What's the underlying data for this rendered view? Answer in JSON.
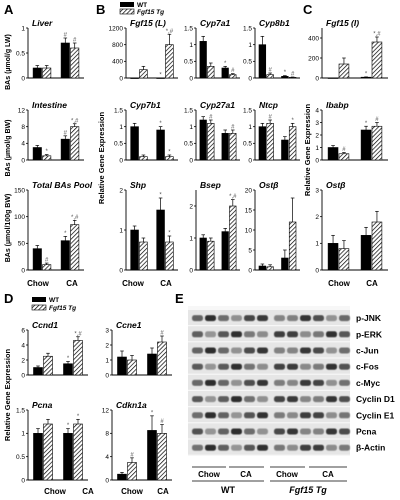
{
  "figure": {
    "panel_letters": [
      "A",
      "B",
      "C",
      "D",
      "E"
    ],
    "legend": {
      "wt": "WT",
      "tg": "Fgf15 Tg"
    },
    "ylabels": {
      "liver": "BAs (µmol/g LW)",
      "intestine": "BAs (µmol/g BW)",
      "pool": "BAs (µmol/100g BW)",
      "rge": "Relative Gene Expression"
    },
    "groups": [
      "Chow",
      "CA"
    ]
  },
  "chart_data": [
    {
      "panel": "A",
      "type": "bar",
      "title": "Liver",
      "categories": [
        "Chow",
        "CA"
      ],
      "ylim": [
        0,
        1
      ],
      "yticks": [
        "0",
        "0.5",
        "1"
      ],
      "series": [
        {
          "name": "WT",
          "values": [
            0.2,
            0.7
          ],
          "err": [
            0.05,
            0.1
          ]
        },
        {
          "name": "Fgf15 Tg",
          "values": [
            0.2,
            0.6
          ],
          "err": [
            0.05,
            0.1
          ]
        }
      ],
      "marks": [
        [
          "",
          ""
        ],
        [
          "#",
          "#"
        ]
      ]
    },
    {
      "panel": "A",
      "type": "bar",
      "title": "Intestine",
      "categories": [
        "Chow",
        "CA"
      ],
      "ylim": [
        0,
        12
      ],
      "yticks": [
        "0",
        "4",
        "8",
        "12"
      ],
      "series": [
        {
          "name": "WT",
          "values": [
            3.0,
            5.0
          ],
          "err": [
            0.5,
            0.8
          ]
        },
        {
          "name": "Fgf15 Tg",
          "values": [
            1.0,
            8.0
          ],
          "err": [
            0.3,
            0.7
          ]
        }
      ],
      "marks": [
        [
          "",
          "*"
        ],
        [
          "#",
          "*,#"
        ]
      ]
    },
    {
      "panel": "A",
      "type": "bar",
      "title": "Total BAs Pool",
      "categories": [
        "Chow",
        "CA"
      ],
      "ylim": [
        0,
        150
      ],
      "yticks": [
        "0",
        "50",
        "100",
        "150"
      ],
      "series": [
        {
          "name": "WT",
          "values": [
            40,
            55
          ],
          "err": [
            6,
            8
          ]
        },
        {
          "name": "Fgf15 Tg",
          "values": [
            10,
            85
          ],
          "err": [
            3,
            8
          ]
        }
      ],
      "marks": [
        [
          "",
          "#"
        ],
        [
          "*",
          "*,#"
        ]
      ]
    },
    {
      "panel": "B",
      "type": "bar",
      "title": "Fgf15 (L)",
      "categories": [
        "Chow",
        "CA"
      ],
      "ylim": [
        0,
        1200
      ],
      "yticks": [
        "0",
        "400",
        "800",
        "1200"
      ],
      "series": [
        {
          "name": "WT",
          "values": [
            1,
            2
          ],
          "err": [
            0,
            0
          ]
        },
        {
          "name": "Fgf15 Tg",
          "values": [
            200,
            800
          ],
          "err": [
            80,
            250
          ]
        }
      ],
      "marks": [
        [
          "",
          ""
        ],
        [
          "*",
          "*,#"
        ]
      ]
    },
    {
      "panel": "B",
      "type": "bar",
      "title": "Cyp7a1",
      "categories": [
        "Chow",
        "CA"
      ],
      "ylim": [
        0,
        1.5
      ],
      "yticks": [
        "0",
        "0.5",
        "1",
        "1.5"
      ],
      "series": [
        {
          "name": "WT",
          "values": [
            1.1,
            0.3
          ],
          "err": [
            0.15,
            0.05
          ]
        },
        {
          "name": "Fgf15 Tg",
          "values": [
            0.35,
            0.1
          ],
          "err": [
            0.1,
            0.03
          ]
        }
      ],
      "marks": [
        [
          "",
          ""
        ],
        [
          "*",
          "#"
        ]
      ]
    },
    {
      "panel": "B",
      "type": "bar",
      "title": "Cyp8b1",
      "categories": [
        "Chow",
        "CA"
      ],
      "ylim": [
        0,
        1.5
      ],
      "yticks": [
        "0",
        "0.5",
        "1",
        "1.5"
      ],
      "series": [
        {
          "name": "WT",
          "values": [
            1.0,
            0.05
          ],
          "err": [
            0.25,
            0.02
          ]
        },
        {
          "name": "Fgf15 Tg",
          "values": [
            0.1,
            0.02
          ],
          "err": [
            0.05,
            0.01
          ]
        }
      ],
      "marks": [
        [
          "",
          "#"
        ],
        [
          "*",
          "#"
        ]
      ]
    },
    {
      "panel": "B",
      "type": "bar",
      "title": "Cyp7b1",
      "categories": [
        "Chow",
        "CA"
      ],
      "ylim": [
        0,
        1.5
      ],
      "yticks": [
        "0",
        "0.5",
        "1",
        "1.5"
      ],
      "series": [
        {
          "name": "WT",
          "values": [
            1.0,
            0.9
          ],
          "err": [
            0.1,
            0.1
          ]
        },
        {
          "name": "Fgf15 Tg",
          "values": [
            0.1,
            0.1
          ],
          "err": [
            0.05,
            0.05
          ]
        }
      ],
      "marks": [
        [
          "",
          ""
        ],
        [
          "*",
          "*"
        ]
      ]
    },
    {
      "panel": "B",
      "type": "bar",
      "title": "Cyp27a1",
      "categories": [
        "Chow",
        "CA"
      ],
      "ylim": [
        0,
        1.5
      ],
      "yticks": [
        "0",
        "0.5",
        "1",
        "1.5"
      ],
      "series": [
        {
          "name": "WT",
          "values": [
            1.2,
            0.8
          ],
          "err": [
            0.1,
            0.1
          ]
        },
        {
          "name": "Fgf15 Tg",
          "values": [
            1.1,
            0.8
          ],
          "err": [
            0.1,
            0.1
          ]
        }
      ],
      "marks": [
        [
          "",
          "#"
        ],
        [
          "",
          "#"
        ]
      ]
    },
    {
      "panel": "B",
      "type": "bar",
      "title": "Ntcp",
      "categories": [
        "Chow",
        "CA"
      ],
      "ylim": [
        0,
        1.5
      ],
      "yticks": [
        "0",
        "0.5",
        "1",
        "1.5"
      ],
      "series": [
        {
          "name": "WT",
          "values": [
            1.0,
            0.6
          ],
          "err": [
            0.1,
            0.1
          ]
        },
        {
          "name": "Fgf15 Tg",
          "values": [
            1.1,
            1.0
          ],
          "err": [
            0.1,
            0.1
          ]
        }
      ],
      "marks": [
        [
          "",
          "#"
        ],
        [
          "",
          "*"
        ]
      ]
    },
    {
      "panel": "B",
      "type": "bar",
      "title": "Shp",
      "categories": [
        "Chow",
        "CA"
      ],
      "ylim": [
        0,
        2
      ],
      "yticks": [
        "0",
        "1",
        "2"
      ],
      "series": [
        {
          "name": "WT",
          "values": [
            1.0,
            1.5
          ],
          "err": [
            0.1,
            0.3
          ]
        },
        {
          "name": "Fgf15 Tg",
          "values": [
            0.7,
            0.7
          ],
          "err": [
            0.1,
            0.15
          ]
        }
      ],
      "marks": [
        [
          "",
          ""
        ],
        [
          "*",
          "*"
        ]
      ]
    },
    {
      "panel": "B",
      "type": "bar",
      "title": "Bsep",
      "categories": [
        "Chow",
        "CA"
      ],
      "ylim": [
        0,
        2.5
      ],
      "yticks": [
        "0",
        "1",
        "2"
      ],
      "series": [
        {
          "name": "WT",
          "values": [
            1.0,
            1.2
          ],
          "err": [
            0.1,
            0.1
          ]
        },
        {
          "name": "Fgf15 Tg",
          "values": [
            0.9,
            2.0
          ],
          "err": [
            0.1,
            0.2
          ]
        }
      ],
      "marks": [
        [
          "",
          ""
        ],
        [
          "",
          "*,#"
        ]
      ]
    },
    {
      "panel": "B",
      "type": "bar",
      "title": "Ostβ",
      "categories": [
        "Chow",
        "CA"
      ],
      "ylim": [
        0,
        20
      ],
      "yticks": [
        "0",
        "5",
        "10",
        "15",
        "20"
      ],
      "series": [
        {
          "name": "WT",
          "values": [
            1.0,
            3.0
          ],
          "err": [
            0.5,
            2.0
          ]
        },
        {
          "name": "Fgf15 Tg",
          "values": [
            0.8,
            12.0
          ],
          "err": [
            0.5,
            6.0
          ]
        }
      ],
      "marks": [
        [
          "",
          ""
        ],
        [
          "",
          ""
        ]
      ]
    },
    {
      "panel": "C",
      "type": "bar",
      "title": "Fgf15 (I)",
      "categories": [
        "Chow",
        "CA"
      ],
      "ylim": [
        0,
        500
      ],
      "yticks": [
        "0",
        "200",
        "400"
      ],
      "series": [
        {
          "name": "WT",
          "values": [
            1,
            8
          ],
          "err": [
            0,
            3
          ]
        },
        {
          "name": "Fgf15 Tg",
          "values": [
            140,
            360
          ],
          "err": [
            60,
            50
          ]
        }
      ],
      "marks": [
        [
          "",
          ""
        ],
        [
          "*",
          "*,#"
        ]
      ]
    },
    {
      "panel": "C",
      "type": "bar",
      "title": "Ibabp",
      "categories": [
        "Chow",
        "CA"
      ],
      "ylim": [
        0,
        4
      ],
      "yticks": [
        "0",
        "1",
        "2",
        "3",
        "4"
      ],
      "series": [
        {
          "name": "WT",
          "values": [
            1.0,
            2.4
          ],
          "err": [
            0.15,
            0.3
          ]
        },
        {
          "name": "Fgf15 Tg",
          "values": [
            0.5,
            2.7
          ],
          "err": [
            0.1,
            0.3
          ]
        }
      ],
      "marks": [
        [
          "",
          "#"
        ],
        [
          "*",
          "#"
        ]
      ]
    },
    {
      "panel": "C",
      "type": "bar",
      "title": "Ostβ",
      "categories": [
        "Chow",
        "CA"
      ],
      "ylim": [
        0,
        3
      ],
      "yticks": [
        "0",
        "1",
        "2",
        "3"
      ],
      "series": [
        {
          "name": "WT",
          "values": [
            1.0,
            1.3
          ],
          "err": [
            0.3,
            0.3
          ]
        },
        {
          "name": "Fgf15 Tg",
          "values": [
            0.8,
            1.8
          ],
          "err": [
            0.3,
            0.4
          ]
        }
      ],
      "marks": [
        [
          "",
          ""
        ],
        [
          "",
          ""
        ]
      ]
    },
    {
      "panel": "D",
      "type": "bar",
      "title": "Ccnd1",
      "categories": [
        "Chow",
        "CA"
      ],
      "ylim": [
        0,
        6
      ],
      "yticks": [
        "0",
        "2",
        "4",
        "6"
      ],
      "series": [
        {
          "name": "WT",
          "values": [
            1.0,
            1.5
          ],
          "err": [
            0.2,
            0.3
          ]
        },
        {
          "name": "Fgf15 Tg",
          "values": [
            2.5,
            4.6
          ],
          "err": [
            0.4,
            0.5
          ]
        }
      ],
      "marks": [
        [
          "",
          ""
        ],
        [
          "*",
          "*,#"
        ]
      ]
    },
    {
      "panel": "D",
      "type": "bar",
      "title": "Ccne1",
      "categories": [
        "Chow",
        "CA"
      ],
      "ylim": [
        0,
        3
      ],
      "yticks": [
        "0",
        "1",
        "2",
        "3"
      ],
      "series": [
        {
          "name": "WT",
          "values": [
            1.2,
            1.4
          ],
          "err": [
            0.4,
            0.4
          ]
        },
        {
          "name": "Fgf15 Tg",
          "values": [
            1.0,
            2.2
          ],
          "err": [
            0.3,
            0.4
          ]
        }
      ],
      "marks": [
        [
          "",
          ""
        ],
        [
          "",
          "#"
        ]
      ]
    },
    {
      "panel": "D",
      "type": "bar",
      "title": "Pcna",
      "categories": [
        "Chow",
        "CA"
      ],
      "ylim": [
        0,
        1.5
      ],
      "yticks": [
        "0",
        "0.5",
        "1",
        "1.5"
      ],
      "series": [
        {
          "name": "WT",
          "values": [
            1.0,
            1.0
          ],
          "err": [
            0.1,
            0.1
          ]
        },
        {
          "name": "Fgf15 Tg",
          "values": [
            1.2,
            1.2
          ],
          "err": [
            0.1,
            0.1
          ]
        }
      ],
      "marks": [
        [
          "",
          ""
        ],
        [
          "*",
          "*"
        ]
      ]
    },
    {
      "panel": "D",
      "type": "bar",
      "title": "Cdkn1a",
      "categories": [
        "Chow",
        "CA"
      ],
      "ylim": [
        0,
        12
      ],
      "yticks": [
        "0",
        "4",
        "8",
        "12"
      ],
      "series": [
        {
          "name": "WT",
          "values": [
            1.0,
            8.5
          ],
          "err": [
            0.3,
            2.5
          ]
        },
        {
          "name": "Fgf15 Tg",
          "values": [
            3.0,
            8.0
          ],
          "err": [
            0.8,
            1.5
          ]
        }
      ],
      "marks": [
        [
          "",
          "#"
        ],
        [
          "*",
          "#"
        ]
      ]
    }
  ],
  "blot": {
    "proteins": [
      "p-JNK",
      "p-ERK",
      "c-Jun",
      "c-Fos",
      "c-Myc",
      "Cyclin D1",
      "Cyclin E1",
      "Pcna",
      "β-Actin"
    ],
    "lane_groups": [
      "Chow",
      "CA",
      "Chow",
      "CA"
    ],
    "genotypes": [
      "WT",
      "Fgf15 Tg"
    ]
  }
}
